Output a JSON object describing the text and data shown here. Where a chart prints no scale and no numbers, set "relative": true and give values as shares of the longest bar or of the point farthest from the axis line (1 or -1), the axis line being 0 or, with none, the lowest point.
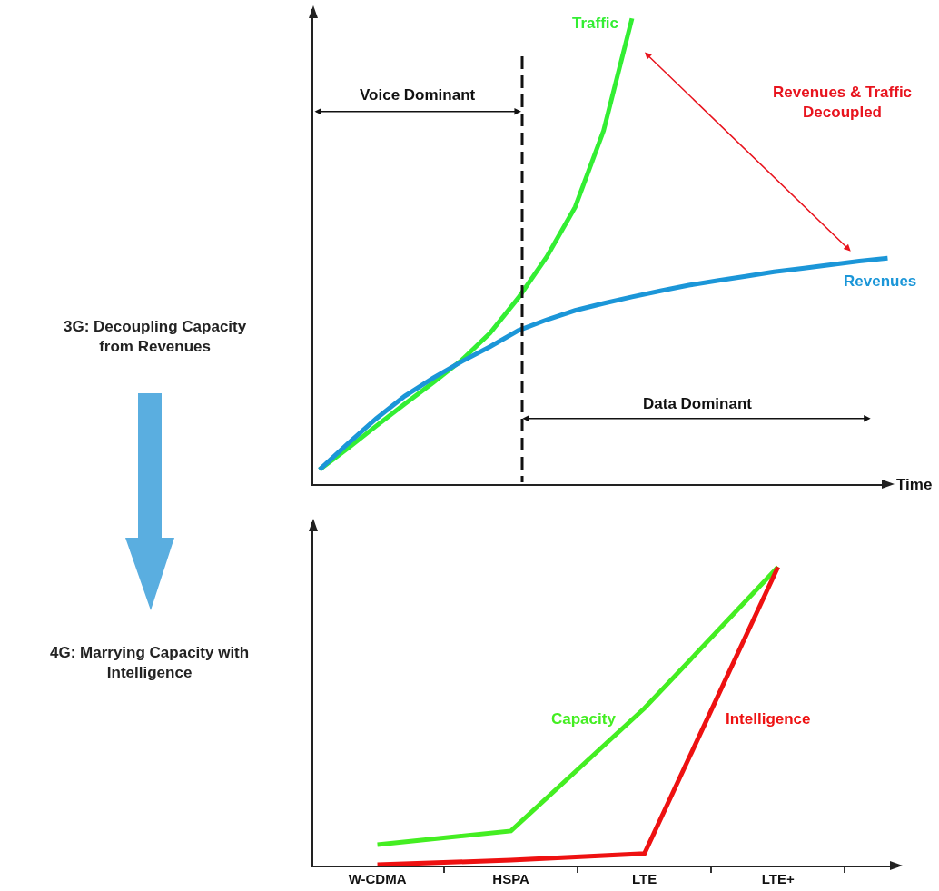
{
  "chart_data": [
    {
      "type": "line",
      "relative": true,
      "xlabel": "Time",
      "categories": [
        null,
        null,
        null,
        null,
        null,
        null,
        null,
        null,
        null,
        null,
        null,
        null,
        null,
        null,
        null,
        null,
        null,
        null,
        null,
        null,
        null
      ],
      "series": [
        {
          "name": "Traffic",
          "color": "#33ee33",
          "values": [
            0.031,
            0.077,
            0.125,
            0.172,
            0.218,
            0.266,
            0.324,
            0.4,
            0.488,
            0.595,
            0.759,
            1,
            null,
            null,
            null,
            null,
            null,
            null,
            null,
            null,
            null
          ]
        },
        {
          "name": "Revenues",
          "color": "#1b96d8",
          "values": [
            0.031,
            0.087,
            0.141,
            0.189,
            0.228,
            0.263,
            0.295,
            0.33,
            0.353,
            0.373,
            0.388,
            0.402,
            0.415,
            0.427,
            0.437,
            0.446,
            0.456,
            0.463,
            0.471,
            0.479,
            0.485
          ]
        }
      ],
      "annotations": [
        "Voice Dominant",
        "Data Dominant",
        "Revenues & Traffic\nDecoupled",
        "3G: Decoupling Capacity\nfrom Revenues"
      ],
      "legend": false,
      "grid": false,
      "marker": "none",
      "line_style": "solid",
      "tick_labels": false
    },
    {
      "type": "line",
      "relative": true,
      "categories": [
        "W-CDMA",
        "HSPA",
        "LTE",
        "LTE+"
      ],
      "series": [
        {
          "name": "Capacity",
          "color": "#44ee22",
          "values": [
            0.07,
            0.116,
            0.527,
            1
          ]
        },
        {
          "name": "Intelligence",
          "color": "#ee1111",
          "values": [
            0.003,
            0.018,
            0.04,
            1
          ]
        }
      ],
      "annotations": [
        "4G: Marrying Capacity with\nIntelligence"
      ],
      "legend": false,
      "grid": false,
      "marker": "none",
      "line_style": "solid",
      "tick_labels": "x"
    }
  ]
}
